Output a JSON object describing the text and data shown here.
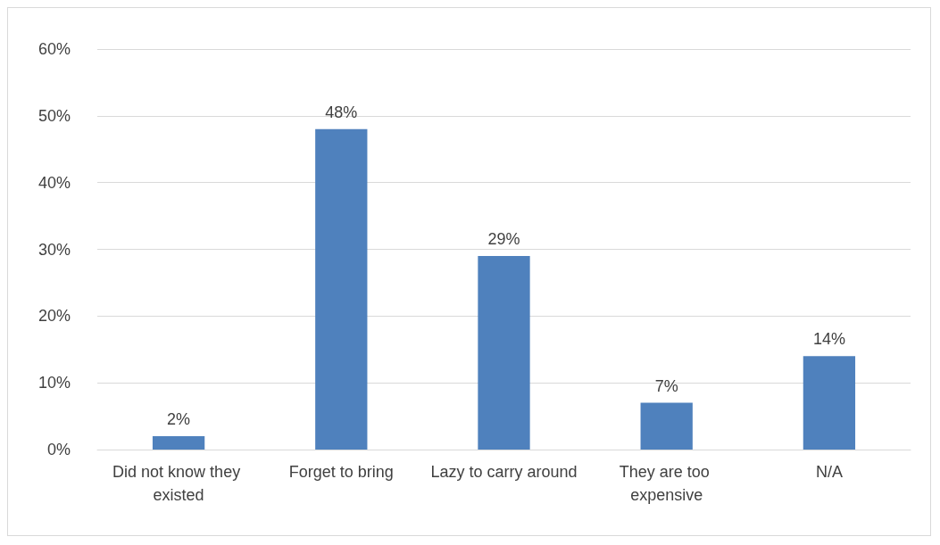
{
  "chart_data": {
    "type": "bar",
    "categories": [
      "Did not know they existed",
      "Forget to bring",
      "Lazy to carry around",
      "They are too expensive",
      "N/A"
    ],
    "values": [
      2,
      48,
      29,
      7,
      14
    ],
    "value_labels": [
      "2%",
      "48%",
      "29%",
      "7%",
      "14%"
    ],
    "color": "#4f81bd",
    "ylim": [
      0,
      60
    ],
    "yticks": [
      {
        "value": 0,
        "label": "0%"
      },
      {
        "value": 10,
        "label": "10%"
      },
      {
        "value": 20,
        "label": "20%"
      },
      {
        "value": 30,
        "label": "30%"
      },
      {
        "value": 40,
        "label": "40%"
      },
      {
        "value": 50,
        "label": "50%"
      },
      {
        "value": 60,
        "label": "60%"
      }
    ],
    "grid": "y"
  }
}
